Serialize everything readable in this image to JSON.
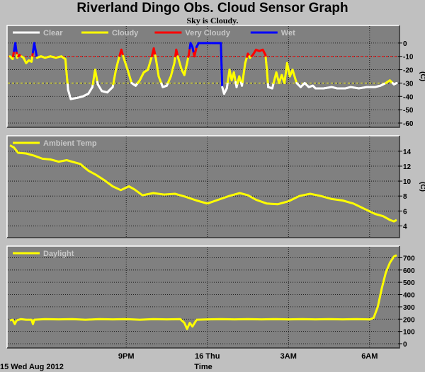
{
  "title": "Riverland Dingo Obs. Cloud Sensor Graph",
  "subtitle": "Sky is Cloudy.",
  "x_axis": {
    "label": "Time",
    "date_label": "15 Wed Aug 2012",
    "ticks": [
      {
        "label": "9PM",
        "x": 21
      },
      {
        "label": "16 Thu",
        "x": 24
      },
      {
        "label": "3AM",
        "x": 27
      },
      {
        "label": "6AM",
        "x": 30
      }
    ],
    "range": [
      16.7,
      31.0
    ]
  },
  "chart_data": [
    {
      "type": "line",
      "name": "cloud",
      "unit": "(C)",
      "ylim": [
        -60,
        10
      ],
      "yticks": [
        0,
        -10,
        -20,
        -30,
        -40,
        -50,
        -60
      ],
      "reference_lines": [
        {
          "y": -10,
          "color": "#ff0000"
        },
        {
          "y": -30,
          "color": "#ffff00"
        }
      ],
      "series": [
        {
          "name": "Clear",
          "color": "#ffffff"
        },
        {
          "name": "Cloudy",
          "color": "#ffff00"
        },
        {
          "name": "Very Cloudy",
          "color": "#ff0000"
        },
        {
          "name": "Wet",
          "color": "#0000ff"
        }
      ],
      "thresholds": {
        "clear_below": -30,
        "very_cloudy_above": -10
      },
      "wet_segments": [
        [
          16.85,
          16.95
        ],
        [
          17.55,
          17.7
        ],
        [
          23.35,
          23.5
        ],
        [
          23.6,
          24.55
        ]
      ],
      "points": [
        [
          16.7,
          -10
        ],
        [
          16.8,
          -12
        ],
        [
          16.9,
          0
        ],
        [
          16.97,
          -11
        ],
        [
          17.05,
          -9
        ],
        [
          17.2,
          -11
        ],
        [
          17.3,
          -15
        ],
        [
          17.4,
          -13
        ],
        [
          17.5,
          -14
        ],
        [
          17.6,
          0
        ],
        [
          17.7,
          -11
        ],
        [
          17.85,
          -10
        ],
        [
          18.0,
          -11
        ],
        [
          18.2,
          -10
        ],
        [
          18.4,
          -11
        ],
        [
          18.6,
          -10
        ],
        [
          18.75,
          -12
        ],
        [
          18.85,
          -35
        ],
        [
          18.95,
          -42
        ],
        [
          19.2,
          -41
        ],
        [
          19.4,
          -40
        ],
        [
          19.6,
          -38
        ],
        [
          19.75,
          -33
        ],
        [
          19.85,
          -20
        ],
        [
          19.95,
          -31
        ],
        [
          20.1,
          -36
        ],
        [
          20.3,
          -37
        ],
        [
          20.5,
          -33
        ],
        [
          20.62,
          -20
        ],
        [
          20.72,
          -12
        ],
        [
          20.82,
          -5
        ],
        [
          20.92,
          -12
        ],
        [
          21.05,
          -20
        ],
        [
          21.2,
          -30
        ],
        [
          21.35,
          -32
        ],
        [
          21.5,
          -28
        ],
        [
          21.65,
          -22
        ],
        [
          21.8,
          -20
        ],
        [
          21.95,
          -10
        ],
        [
          22.02,
          -4
        ],
        [
          22.1,
          -12
        ],
        [
          22.2,
          -25
        ],
        [
          22.35,
          -33
        ],
        [
          22.5,
          -32
        ],
        [
          22.65,
          -25
        ],
        [
          22.78,
          -15
        ],
        [
          22.85,
          -5
        ],
        [
          22.92,
          -11
        ],
        [
          23.05,
          -20
        ],
        [
          23.15,
          -24
        ],
        [
          23.25,
          -15
        ],
        [
          23.32,
          -8
        ],
        [
          23.38,
          0
        ],
        [
          23.45,
          -3
        ],
        [
          23.52,
          -10
        ],
        [
          23.6,
          -3
        ],
        [
          23.68,
          0
        ],
        [
          24.2,
          0
        ],
        [
          24.5,
          0
        ],
        [
          24.55,
          -33
        ],
        [
          24.62,
          -38
        ],
        [
          24.72,
          -34
        ],
        [
          24.82,
          -20
        ],
        [
          24.9,
          -28
        ],
        [
          24.98,
          -22
        ],
        [
          25.08,
          -33
        ],
        [
          25.18,
          -25
        ],
        [
          25.28,
          -32
        ],
        [
          25.4,
          -15
        ],
        [
          25.5,
          -8
        ],
        [
          25.58,
          -11
        ],
        [
          25.68,
          -9
        ],
        [
          25.8,
          -5
        ],
        [
          25.92,
          -6
        ],
        [
          26.05,
          -5
        ],
        [
          26.15,
          -9
        ],
        [
          26.2,
          -20
        ],
        [
          26.25,
          -33
        ],
        [
          26.4,
          -34
        ],
        [
          26.55,
          -22
        ],
        [
          26.65,
          -30
        ],
        [
          26.75,
          -24
        ],
        [
          26.85,
          -30
        ],
        [
          26.95,
          -15
        ],
        [
          27.05,
          -25
        ],
        [
          27.15,
          -20
        ],
        [
          27.3,
          -30
        ],
        [
          27.45,
          -33
        ],
        [
          27.6,
          -30
        ],
        [
          27.75,
          -33
        ],
        [
          27.9,
          -32
        ],
        [
          28.0,
          -34
        ],
        [
          28.3,
          -34
        ],
        [
          28.6,
          -33
        ],
        [
          28.8,
          -34
        ],
        [
          29.1,
          -34
        ],
        [
          29.3,
          -33
        ],
        [
          29.6,
          -34
        ],
        [
          29.9,
          -33
        ],
        [
          30.2,
          -33
        ],
        [
          30.4,
          -32
        ],
        [
          30.6,
          -30
        ],
        [
          30.75,
          -28
        ],
        [
          30.9,
          -31
        ],
        [
          31.0,
          -30
        ]
      ]
    },
    {
      "type": "line",
      "name": "ambient",
      "unit": "(C)",
      "ylim": [
        3,
        15.5
      ],
      "yticks": [
        14,
        12,
        10,
        8,
        6,
        4
      ],
      "series": [
        {
          "name": "Ambient Temp",
          "color": "#ffff00"
        }
      ],
      "points": [
        [
          16.7,
          14.8
        ],
        [
          16.85,
          14.5
        ],
        [
          17.0,
          13.8
        ],
        [
          17.3,
          13.7
        ],
        [
          17.6,
          13.4
        ],
        [
          17.9,
          13.0
        ],
        [
          18.2,
          12.9
        ],
        [
          18.5,
          12.6
        ],
        [
          18.8,
          12.8
        ],
        [
          19.1,
          12.5
        ],
        [
          19.3,
          12.3
        ],
        [
          19.6,
          11.4
        ],
        [
          19.9,
          10.8
        ],
        [
          20.2,
          10.1
        ],
        [
          20.5,
          9.3
        ],
        [
          20.8,
          8.8
        ],
        [
          21.1,
          9.3
        ],
        [
          21.3,
          8.9
        ],
        [
          21.6,
          8.1
        ],
        [
          22.0,
          8.4
        ],
        [
          22.4,
          8.2
        ],
        [
          22.8,
          8.3
        ],
        [
          23.2,
          7.9
        ],
        [
          23.6,
          7.4
        ],
        [
          24.0,
          7.0
        ],
        [
          24.4,
          7.5
        ],
        [
          24.8,
          8.0
        ],
        [
          25.2,
          8.4
        ],
        [
          25.5,
          8.1
        ],
        [
          25.8,
          7.5
        ],
        [
          26.2,
          7.0
        ],
        [
          26.6,
          6.9
        ],
        [
          27.0,
          7.3
        ],
        [
          27.4,
          8.0
        ],
        [
          27.8,
          8.3
        ],
        [
          28.2,
          8.0
        ],
        [
          28.6,
          7.6
        ],
        [
          29.0,
          7.4
        ],
        [
          29.4,
          7.0
        ],
        [
          29.8,
          6.3
        ],
        [
          30.2,
          5.6
        ],
        [
          30.5,
          5.3
        ],
        [
          30.75,
          4.8
        ],
        [
          30.9,
          4.6
        ],
        [
          31.0,
          4.8
        ]
      ]
    },
    {
      "type": "line",
      "name": "daylight",
      "unit": "",
      "ylim": [
        0,
        760
      ],
      "yticks": [
        700,
        600,
        500,
        400,
        300,
        200,
        100,
        0
      ],
      "series": [
        {
          "name": "Daylight",
          "color": "#ffff00"
        }
      ],
      "points": [
        [
          16.7,
          190
        ],
        [
          16.8,
          195
        ],
        [
          16.88,
          160
        ],
        [
          16.95,
          190
        ],
        [
          17.1,
          200
        ],
        [
          17.3,
          195
        ],
        [
          17.5,
          195
        ],
        [
          17.55,
          160
        ],
        [
          17.6,
          195
        ],
        [
          18.0,
          200
        ],
        [
          18.5,
          198
        ],
        [
          19.0,
          200
        ],
        [
          19.5,
          195
        ],
        [
          20.0,
          200
        ],
        [
          20.5,
          198
        ],
        [
          21.0,
          200
        ],
        [
          21.5,
          195
        ],
        [
          22.0,
          200
        ],
        [
          22.5,
          198
        ],
        [
          23.0,
          200
        ],
        [
          23.15,
          170
        ],
        [
          23.25,
          120
        ],
        [
          23.35,
          170
        ],
        [
          23.45,
          140
        ],
        [
          23.6,
          195
        ],
        [
          24.0,
          198
        ],
        [
          24.5,
          200
        ],
        [
          25.0,
          198
        ],
        [
          25.5,
          200
        ],
        [
          26.0,
          198
        ],
        [
          26.5,
          200
        ],
        [
          27.0,
          198
        ],
        [
          27.5,
          200
        ],
        [
          28.0,
          198
        ],
        [
          28.5,
          200
        ],
        [
          29.0,
          198
        ],
        [
          29.5,
          200
        ],
        [
          30.0,
          198
        ],
        [
          30.15,
          210
        ],
        [
          30.3,
          300
        ],
        [
          30.45,
          450
        ],
        [
          30.6,
          580
        ],
        [
          30.75,
          660
        ],
        [
          30.9,
          710
        ],
        [
          31.0,
          720
        ]
      ]
    }
  ]
}
